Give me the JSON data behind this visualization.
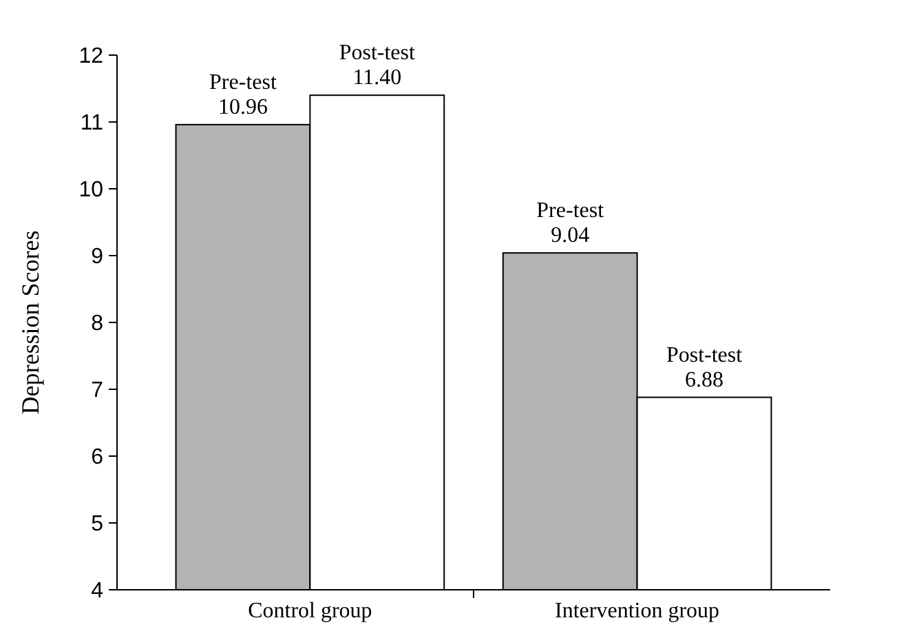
{
  "chart_data": {
    "type": "bar",
    "ylabel": "Depression Scores",
    "categories": [
      "Control group",
      "Intervention group"
    ],
    "series": [
      {
        "name": "Pre-test",
        "color": "#b3b3b3",
        "values": [
          10.96,
          9.04
        ],
        "value_labels": [
          "10.96",
          "9.04"
        ]
      },
      {
        "name": "Post-test",
        "color": "#ffffff",
        "values": [
          11.4,
          6.88
        ],
        "value_labels": [
          "11.40",
          "6.88"
        ]
      }
    ],
    "ylim": [
      4,
      12
    ],
    "yticks": [
      4,
      5,
      6,
      7,
      8,
      9,
      10,
      11,
      12
    ],
    "grid": false,
    "legend": false
  }
}
